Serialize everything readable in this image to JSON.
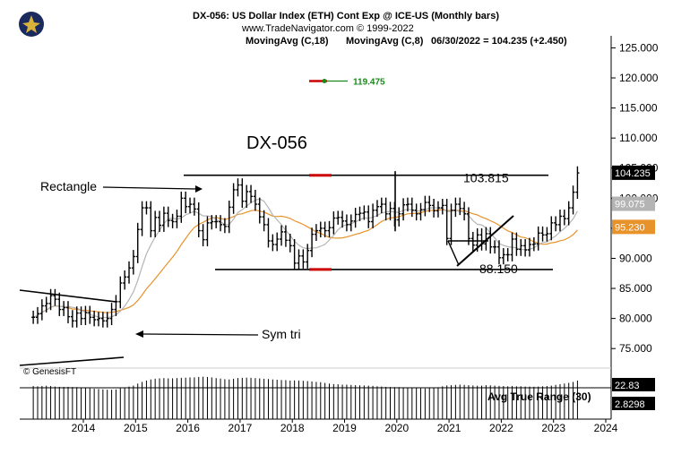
{
  "header": {
    "title": "DX-056:  US Dollar Index (ETH) Cont Exp @ ICE-US  (Monthly bars)",
    "url": "www.TradeNavigator.com © 1999-2022",
    "ma18_label": "MovingAvg (C,18)",
    "ma8_label": "MovingAvg (C,8)",
    "readout": "06/30/2022 = 104.235 (+2.450)"
  },
  "colors": {
    "ma18": "#e8922a",
    "ma8": "#b4b4b4",
    "price": "#000000",
    "marker_red": "#cc0000",
    "marker_green": "#1a8a1a",
    "cursor": "#000000"
  },
  "chart_data": {
    "type": "ohlc",
    "title": "DX-056",
    "copyright": "© GenesisFT",
    "x": {
      "tick_labels": [
        "2014",
        "2015",
        "2016",
        "2017",
        "2018",
        "2019",
        "2020",
        "2021",
        "2022",
        "2023",
        "2024"
      ],
      "range": [
        "2013-01",
        "2024-01"
      ]
    },
    "y": {
      "tick_labels": [
        "125.000",
        "120.000",
        "115.000",
        "110.000",
        "105.000",
        "100.000",
        "95.000",
        "90.000",
        "85.000",
        "80.000",
        "75.000"
      ],
      "range": [
        72.5,
        127
      ]
    },
    "series": {
      "close": [
        80.2,
        80.8,
        82.1,
        82.5,
        83.8,
        83.2,
        81.5,
        81.8,
        80.3,
        79.6,
        80.9,
        80.0,
        81.0,
        80.2,
        79.8,
        80.0,
        79.6,
        80.0,
        81.5,
        82.8,
        85.9,
        86.9,
        88.4,
        90.3,
        94.8,
        98.4,
        98.4,
        94.6,
        96.8,
        95.5,
        97.5,
        96.3,
        96.1,
        97.0,
        100.0,
        98.6,
        99.0,
        98.2,
        94.6,
        93.1,
        95.9,
        96.1,
        96.1,
        95.6,
        95.3,
        98.5,
        101.4,
        102.2,
        99.5,
        101.1,
        100.3,
        99.0,
        96.9,
        95.6,
        92.9,
        92.3,
        93.2,
        94.4,
        93.0,
        92.1,
        89.2,
        90.4,
        89.4,
        91.3,
        94.0,
        94.6,
        95.0,
        94.6,
        95.1,
        96.7,
        96.8,
        96.2,
        95.6,
        96.2,
        97.3,
        97.5,
        97.7,
        96.1,
        98.0,
        98.6,
        99.0,
        97.4,
        98.3,
        96.4,
        97.4,
        98.9,
        99.0,
        98.0,
        97.4,
        98.1,
        99.3,
        98.8,
        97.9,
        98.4,
        98.8,
        93.3,
        98.0,
        99.0,
        98.3,
        97.4,
        93.3,
        92.2,
        93.9,
        92.4,
        94.1,
        91.9,
        91.9,
        90.1,
        90.6,
        90.6,
        93.2,
        91.5,
        92.1,
        91.4,
        92.3,
        92.4,
        94.2,
        93.9,
        94.1,
        95.9,
        95.6,
        97.0,
        96.6,
        98.4,
        101.0,
        104.2
      ],
      "markers": {
        "value_tag": 119.475,
        "resistance_marker": 103.8,
        "support_marker": 88.15
      }
    },
    "moving_averages": [
      {
        "name": "MovingAvg (C,18)",
        "period": 18
      },
      {
        "name": "MovingAvg (C,8)",
        "period": 8
      }
    ],
    "levels": [
      {
        "label": "103.815",
        "value": 103.815
      },
      {
        "label": "88.150",
        "value": 88.15
      }
    ],
    "annotations": [
      {
        "label": "Rectangle"
      },
      {
        "label": "Sym tri"
      },
      {
        "label": "119.475"
      }
    ],
    "axis_tags": {
      "last_price": "104.235",
      "ma8_value": "99.075",
      "ma18_value": "95.230",
      "indicator_value": "22.83",
      "indicator_secondary": "2.8298"
    },
    "indicator": {
      "name": "Avg True Range (30)",
      "values": [
        2.42,
        2.4,
        2.42,
        2.44,
        2.42,
        2.38,
        2.36,
        2.36,
        2.36,
        2.35,
        2.34,
        2.3,
        2.27,
        2.25,
        2.22,
        2.2,
        2.18,
        2.15,
        2.15,
        2.17,
        2.25,
        2.3,
        2.38,
        2.45,
        2.6,
        2.72,
        2.82,
        2.9,
        2.95,
        2.98,
        3.0,
        2.98,
        2.98,
        3.0,
        3.02,
        3.03,
        3.05,
        3.05,
        3.08,
        3.1,
        3.08,
        3.05,
        3.0,
        2.96,
        2.92,
        2.9,
        2.95,
        3.0,
        3.02,
        3.03,
        3.02,
        3.0,
        2.98,
        2.95,
        2.93,
        2.9,
        2.88,
        2.86,
        2.85,
        2.82,
        2.83,
        2.82,
        2.8,
        2.78,
        2.75,
        2.72,
        2.7,
        2.65,
        2.6,
        2.56,
        2.55,
        2.52,
        2.52,
        2.5,
        2.48,
        2.47,
        2.46,
        2.45,
        2.43,
        2.4,
        2.38,
        2.36,
        2.35,
        2.34,
        2.34,
        2.33,
        2.3,
        2.28,
        2.26,
        2.25,
        2.24,
        2.26,
        2.3,
        2.33,
        2.4,
        2.46,
        2.48,
        2.5,
        2.52,
        2.5,
        2.48,
        2.46,
        2.44,
        2.45,
        2.48,
        2.47,
        2.45,
        2.43,
        2.42,
        2.4,
        2.42,
        2.4,
        2.4,
        2.38,
        2.38,
        2.37,
        2.38,
        2.4,
        2.42,
        2.45,
        2.5,
        2.55,
        2.6,
        2.65,
        2.72,
        2.82
      ]
    }
  }
}
